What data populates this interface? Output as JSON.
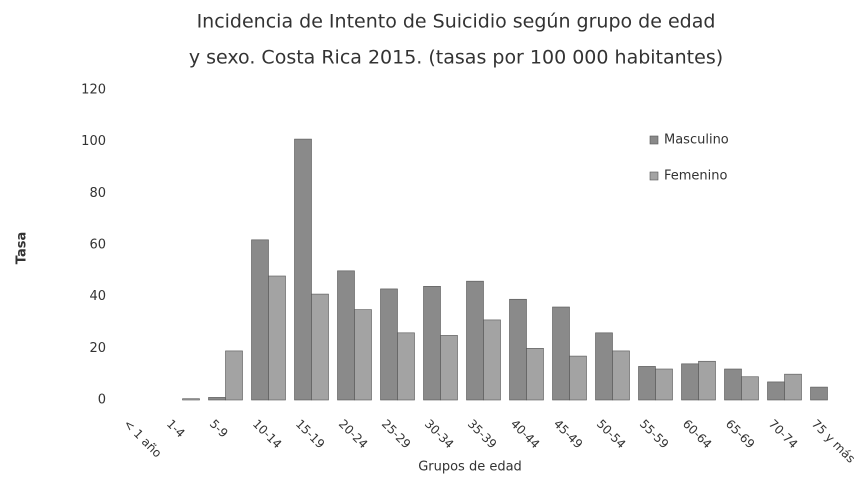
{
  "chart_data": {
    "type": "bar",
    "title": [
      "Incidencia de Intento de Suicidio según grupo de edad",
      "y sexo. Costa Rica 2015. (tasas por 100 000 habitantes)"
    ],
    "x_label": "Grupos de edad",
    "y_label": "Tasa",
    "categories": [
      "< 1 año",
      "1-4",
      "5-9",
      "10-14",
      "15-19",
      "20-24",
      "25-29",
      "30-34",
      "35-39",
      "40-44",
      "45-49",
      "50-54",
      "55-59",
      "60-64",
      "65-69",
      "70-74",
      "75 y más"
    ],
    "series": [
      {
        "name": "Masculino",
        "color": "#8a8a8a",
        "values": [
          0,
          0,
          1,
          62,
          101,
          50,
          43,
          44,
          46,
          39,
          36,
          26,
          13,
          14,
          12,
          7,
          5
        ]
      },
      {
        "name": "Femenino",
        "color": "#a3a3a3",
        "values": [
          0,
          0.5,
          19,
          48,
          41,
          35,
          26,
          25,
          31,
          20,
          17,
          19,
          12,
          15,
          9,
          10,
          0
        ]
      }
    ],
    "ylim": [
      0,
      120
    ],
    "yticks": [
      0,
      20,
      40,
      60,
      80,
      100,
      120
    ],
    "grid": false,
    "legend": "upper right"
  }
}
